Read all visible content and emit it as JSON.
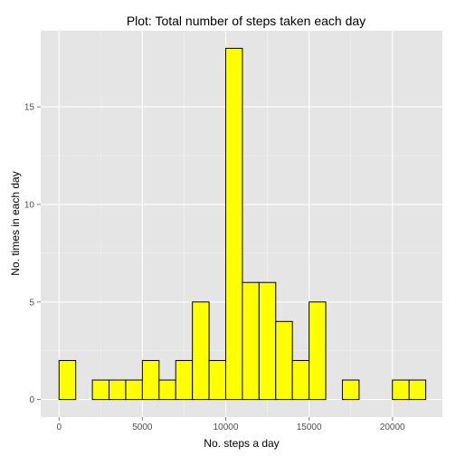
{
  "chart_data": {
    "type": "bar",
    "title": "Plot: Total number of steps taken each day",
    "xlabel": "No. steps a day",
    "ylabel": "No. times in each day",
    "xlim": [
      -1100,
      23000
    ],
    "ylim": [
      -0.9,
      18.9
    ],
    "x_ticks": [
      0,
      5000,
      10000,
      15000,
      20000
    ],
    "x_tick_labels": [
      "0",
      "5000",
      "10000",
      "15000",
      "20000"
    ],
    "y_ticks": [
      0,
      5,
      10,
      15
    ],
    "y_tick_labels": [
      "0",
      "5",
      "10",
      "15"
    ],
    "bin_width": 1000,
    "bins_start": [
      -1000,
      0,
      1000,
      2000,
      3000,
      4000,
      5000,
      6000,
      7000,
      8000,
      9000,
      10000,
      11000,
      12000,
      13000,
      14000,
      15000,
      16000,
      17000,
      18000,
      19000,
      20000,
      21000
    ],
    "values": [
      0,
      2,
      0,
      1,
      1,
      1,
      2,
      1,
      2,
      5,
      2,
      18,
      6,
      6,
      4,
      2,
      5,
      0,
      1,
      0,
      0,
      1,
      1
    ],
    "grid": true,
    "colors": {
      "panel_background": "#e5e5e5",
      "grid_major": "#ffffff",
      "bar_fill": "#ffff00",
      "bar_stroke": "#000000",
      "tick_text": "#4d4d4d"
    }
  }
}
